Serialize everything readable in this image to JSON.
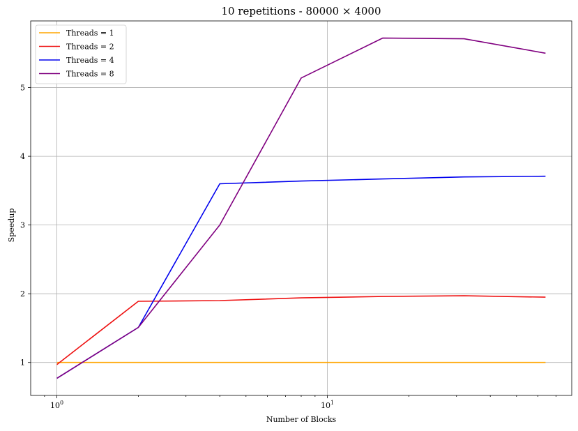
{
  "chart_data": {
    "type": "line",
    "title": "10 repetitions - 80000 × 4000",
    "xlabel": "Number of Blocks",
    "ylabel": "Speedup",
    "xscale": "log",
    "xlim": [
      0.8,
      80
    ],
    "ylim": [
      0.52,
      5.97
    ],
    "grid": true,
    "legend_position": "top-left",
    "x": [
      1,
      2,
      4,
      8,
      16,
      32,
      64
    ],
    "x_tick_labels": [
      {
        "value": 1,
        "base": "10",
        "exp": "0"
      },
      {
        "value": 10,
        "base": "10",
        "exp": "1"
      }
    ],
    "y_ticks": [
      1,
      2,
      3,
      4,
      5
    ],
    "series": [
      {
        "name": "Threads = 1",
        "color": "#ffa500",
        "values": [
          1.0,
          1.0,
          1.0,
          1.0,
          1.0,
          1.0,
          1.0
        ]
      },
      {
        "name": "Threads = 2",
        "color": "#ee1111",
        "values": [
          0.97,
          1.89,
          1.9,
          1.94,
          1.96,
          1.97,
          1.95
        ]
      },
      {
        "name": "Threads = 4",
        "color": "#0000ee",
        "values": [
          0.77,
          1.51,
          3.6,
          3.64,
          3.67,
          3.7,
          3.71
        ]
      },
      {
        "name": "Threads = 8",
        "color": "#800080",
        "values": [
          0.77,
          1.51,
          3.0,
          5.14,
          5.72,
          5.71,
          5.5
        ]
      }
    ]
  }
}
